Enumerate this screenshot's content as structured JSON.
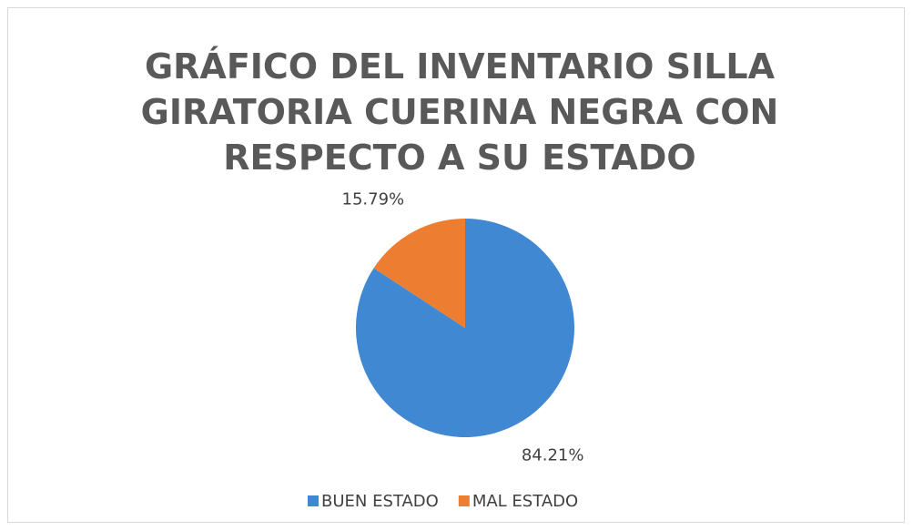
{
  "chart_data": {
    "type": "pie",
    "title": "GRÁFICO DEL INVENTARIO SILLA GIRATORIA CUERINA NEGRA CON RESPECTO A SU ESTADO",
    "categories": [
      "BUEN ESTADO",
      "MAL ESTADO"
    ],
    "values": [
      84.21,
      15.79
    ],
    "value_labels": [
      "84.21%",
      "15.79%"
    ],
    "colors": [
      "#4188d2",
      "#ed7d31"
    ],
    "legend": "bottom"
  }
}
